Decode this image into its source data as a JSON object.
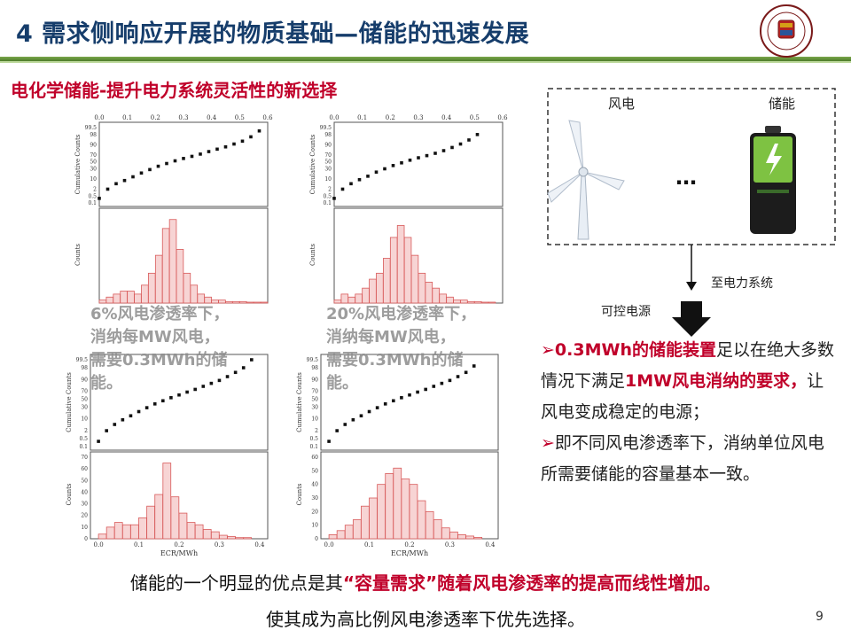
{
  "title": "4 需求侧响应开展的物质基础—储能的迅速发展",
  "subtitle": "电化学储能-提升电力系统灵活性的新选择",
  "overlays": [
    {
      "line1": "6%风电渗透率下，",
      "line2": "消纳每MW风电，",
      "line3": "需要0.3MWh的储",
      "line4": "能。"
    },
    {
      "line1": "20%风电渗透率下，",
      "line2": "消纳每MW风电，",
      "line3": "需要0.3MWh的储",
      "line4": "能。"
    }
  ],
  "diagram": {
    "wind_label": "风电",
    "storage_label": "储能",
    "dots": "…",
    "grid_label": "至电力系统",
    "control_label": "可控电源"
  },
  "bullets": {
    "b1_red1": "0.3MWh的储能装置",
    "b1_text1": "足以在绝大多数情况下满足",
    "b1_red2": "1MW风电消纳的要求，",
    "b1_text2": "让风电变成稳定的电源；",
    "b2_text": "即不同风电渗透率下，消纳单位风电所需要储能的容量基本一致。"
  },
  "bottom": {
    "line1_a": "储能的一个明显的优点是其",
    "line1_red": "“容量需求”随着风电渗透率的提高而线性增加。",
    "line2": "使其成为高比例风电渗透率下优先选择。"
  },
  "page_number": "9",
  "chart_data": [
    {
      "type": "scatter",
      "panel": "top-left",
      "xlabel": "",
      "ylabel": "Cumulative Counts",
      "x_ticks": [
        "0.0",
        "0.1",
        "0.2",
        "0.3",
        "0.4",
        "0.5",
        "0.6"
      ],
      "y_ticks": [
        "0.1",
        "0.5",
        "2",
        "10",
        "30",
        "50",
        "70",
        "90",
        "98",
        "99.5"
      ],
      "x": [
        0.0,
        0.03,
        0.06,
        0.09,
        0.12,
        0.15,
        0.18,
        0.21,
        0.24,
        0.27,
        0.3,
        0.33,
        0.36,
        0.39,
        0.42,
        0.45,
        0.48,
        0.51,
        0.54,
        0.57
      ],
      "y": [
        0.3,
        2,
        5,
        8,
        13,
        20,
        28,
        37,
        45,
        53,
        60,
        66,
        72,
        78,
        83,
        87,
        91,
        94,
        97,
        99
      ]
    },
    {
      "type": "bar",
      "panel": "top-left-hist",
      "ylabel": "Counts",
      "x": [
        0.0,
        0.025,
        0.05,
        0.075,
        0.1,
        0.125,
        0.15,
        0.175,
        0.2,
        0.225,
        0.25,
        0.275,
        0.3,
        0.325,
        0.35,
        0.375,
        0.4,
        0.425,
        0.45,
        0.475,
        0.5,
        0.525,
        0.55,
        0.575
      ],
      "values": [
        1,
        2,
        3,
        4,
        4,
        3,
        6,
        10,
        16,
        25,
        28,
        18,
        10,
        6,
        3,
        2,
        1,
        1,
        0.5,
        0.5,
        0.5,
        0.3,
        0.3,
        0.3
      ],
      "xlim": [
        0,
        0.6
      ]
    },
    {
      "type": "scatter",
      "panel": "top-right",
      "ylabel": "Cumulative Counts",
      "x_ticks": [
        "0.0",
        "0.1",
        "0.2",
        "0.3",
        "0.4",
        "0.5",
        "0.6"
      ],
      "y_ticks": [
        "0.1",
        "0.5",
        "2",
        "10",
        "30",
        "50",
        "70",
        "90",
        "98",
        "99.5"
      ],
      "x": [
        0.0,
        0.03,
        0.06,
        0.09,
        0.12,
        0.15,
        0.18,
        0.21,
        0.24,
        0.27,
        0.3,
        0.33,
        0.36,
        0.39,
        0.42,
        0.45,
        0.48,
        0.51
      ],
      "y": [
        0.3,
        2,
        5,
        9,
        14,
        22,
        30,
        39,
        47,
        55,
        62,
        68,
        74,
        80,
        86,
        91,
        95,
        98
      ]
    },
    {
      "type": "bar",
      "panel": "top-right-hist",
      "ylabel": "Counts",
      "x": [
        0.0,
        0.025,
        0.05,
        0.075,
        0.1,
        0.125,
        0.15,
        0.175,
        0.2,
        0.225,
        0.25,
        0.275,
        0.3,
        0.325,
        0.35,
        0.375,
        0.4,
        0.425,
        0.45,
        0.475,
        0.5,
        0.525,
        0.55
      ],
      "values": [
        1,
        3,
        2,
        3,
        5,
        8,
        10,
        15,
        22,
        26,
        22,
        16,
        10,
        7,
        5,
        3,
        2,
        1,
        1,
        0.5,
        0.5,
        0.3,
        0.3
      ],
      "xlim": [
        0,
        0.6
      ]
    },
    {
      "type": "scatter",
      "panel": "bottom-left",
      "ylabel": "Cumulative Counts",
      "y_ticks": [
        "0.1",
        "0.5",
        "2",
        "10",
        "30",
        "50",
        "70",
        "90",
        "98",
        "99.5"
      ],
      "x": [
        0.0,
        0.02,
        0.04,
        0.06,
        0.08,
        0.1,
        0.12,
        0.14,
        0.16,
        0.18,
        0.2,
        0.22,
        0.24,
        0.26,
        0.28,
        0.3,
        0.32,
        0.34,
        0.36,
        0.38
      ],
      "y": [
        0.3,
        2,
        5,
        9,
        14,
        21,
        29,
        38,
        46,
        54,
        61,
        68,
        74,
        80,
        85,
        89,
        93,
        96,
        98,
        99.5
      ]
    },
    {
      "type": "bar",
      "panel": "bottom-left-hist",
      "ylabel": "Counts",
      "xlabel": "ECR/MWh",
      "x_ticks": [
        "0.0",
        "0.1",
        "0.2",
        "0.3",
        "0.4"
      ],
      "y_ticks": [
        "0",
        "10",
        "20",
        "30",
        "40",
        "50",
        "60",
        "70"
      ],
      "x": [
        0.0,
        0.02,
        0.04,
        0.06,
        0.08,
        0.1,
        0.12,
        0.14,
        0.16,
        0.18,
        0.2,
        0.22,
        0.24,
        0.26,
        0.28,
        0.3,
        0.32,
        0.34,
        0.36
      ],
      "values": [
        4,
        10,
        14,
        12,
        12,
        18,
        28,
        38,
        65,
        36,
        22,
        14,
        12,
        8,
        6,
        3,
        2,
        1,
        1
      ],
      "ylim": [
        0,
        70
      ],
      "xlim": [
        -0.02,
        0.42
      ]
    },
    {
      "type": "scatter",
      "panel": "bottom-right",
      "ylabel": "Cumulative Counts",
      "y_ticks": [
        "0.1",
        "0.5",
        "2",
        "10",
        "30",
        "50",
        "70",
        "90",
        "98",
        "99.5"
      ],
      "x": [
        0.0,
        0.02,
        0.04,
        0.06,
        0.08,
        0.1,
        0.12,
        0.14,
        0.16,
        0.18,
        0.2,
        0.22,
        0.24,
        0.26,
        0.28,
        0.3,
        0.32,
        0.34,
        0.36
      ],
      "y": [
        0.3,
        2,
        5,
        9,
        14,
        21,
        29,
        38,
        46,
        54,
        61,
        68,
        74,
        80,
        85,
        89,
        93,
        96,
        98.5
      ]
    },
    {
      "type": "bar",
      "panel": "bottom-right-hist",
      "ylabel": "Counts",
      "xlabel": "ECR/MWh",
      "x_ticks": [
        "0.0",
        "0.1",
        "0.2",
        "0.3",
        "0.4"
      ],
      "y_ticks": [
        "0",
        "10",
        "20",
        "30",
        "40",
        "50",
        "60"
      ],
      "x": [
        0.0,
        0.02,
        0.04,
        0.06,
        0.08,
        0.1,
        0.12,
        0.14,
        0.16,
        0.18,
        0.2,
        0.22,
        0.24,
        0.26,
        0.28,
        0.3,
        0.32,
        0.34,
        0.36
      ],
      "values": [
        3,
        6,
        10,
        14,
        24,
        30,
        40,
        48,
        52,
        44,
        40,
        28,
        20,
        14,
        8,
        5,
        3,
        2,
        1
      ],
      "ylim": [
        0,
        60
      ],
      "xlim": [
        -0.02,
        0.42
      ]
    }
  ]
}
